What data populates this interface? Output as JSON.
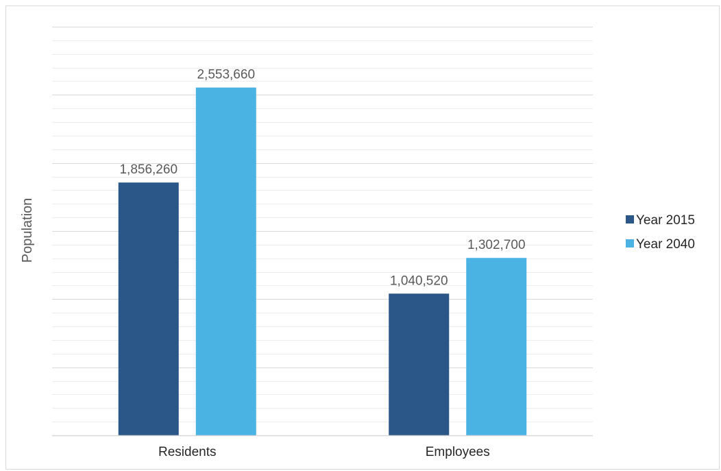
{
  "chart_data": {
    "type": "bar",
    "categories": [
      "Residents",
      "Employees"
    ],
    "series": [
      {
        "name": "Year 2015",
        "values": [
          1856260,
          1040520
        ],
        "labels": [
          "1,856,260",
          "1,040,520"
        ],
        "color": "#2a5788"
      },
      {
        "name": "Year 2040",
        "values": [
          2553660,
          1302700
        ],
        "labels": [
          "2,553,660",
          "1,302,700"
        ],
        "color": "#4bb3e4"
      }
    ],
    "title": "",
    "xlabel": "",
    "ylabel": "Population",
    "ylim": [
      0,
      3000000
    ],
    "gridlines": true,
    "legend_position": "right",
    "colors": {
      "gridline_major": "#d9d9d9",
      "gridline_minor": "#ededed",
      "axis": "#d9d9d9"
    }
  }
}
